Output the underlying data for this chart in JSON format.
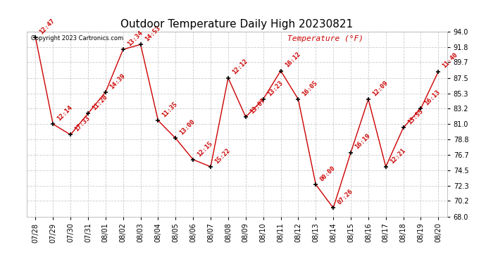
{
  "title": "Outdoor Temperature Daily High 20230821",
  "copyright": "Copyright 2023 Cartronics.com",
  "ylabel": "Temperature (°F)",
  "dates": [
    "07/28",
    "07/29",
    "07/30",
    "07/31",
    "08/01",
    "08/02",
    "08/03",
    "08/04",
    "08/05",
    "08/06",
    "08/07",
    "08/08",
    "08/09",
    "08/10",
    "08/11",
    "08/12",
    "08/13",
    "08/14",
    "08/15",
    "08/16",
    "08/17",
    "08/18",
    "08/19",
    "08/20"
  ],
  "temperatures": [
    93.2,
    81.0,
    79.5,
    82.5,
    85.5,
    91.5,
    92.2,
    81.5,
    79.0,
    76.0,
    75.0,
    87.5,
    82.0,
    84.5,
    88.5,
    84.5,
    72.5,
    69.2,
    77.0,
    84.5,
    75.0,
    80.5,
    83.2,
    88.4
  ],
  "labels": [
    "12:47",
    "12:14",
    "17:33",
    "11:20",
    "14:39",
    "13:34",
    "14:53",
    "11:35",
    "13:00",
    "12:15",
    "15:22",
    "12:12",
    "13:07",
    "13:23",
    "16:12",
    "16:05",
    "00:00",
    "07:26",
    "16:19",
    "12:09",
    "12:21",
    "13:55",
    "16:13",
    "11:40"
  ],
  "ylim_min": 68.0,
  "ylim_max": 94.0,
  "yticks": [
    68.0,
    70.2,
    72.3,
    74.5,
    76.7,
    78.8,
    81.0,
    83.2,
    85.3,
    87.5,
    89.7,
    91.8,
    94.0
  ],
  "line_color": "#cc0000",
  "marker_color": "#000000",
  "label_color": "#cc0000",
  "bg_color": "#ffffff",
  "grid_color": "#cccccc",
  "title_color": "#000000",
  "copyright_color": "#000000",
  "ylabel_color": "#cc0000",
  "title_fontsize": 11,
  "tick_fontsize": 7,
  "label_fontsize": 6.5
}
